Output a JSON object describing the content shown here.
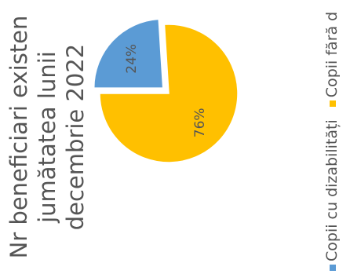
{
  "chart_data": {
    "type": "pie",
    "title_lines": [
      "Nr beneficiari existen",
      "jumătatea lunii",
      "decembrie 2022"
    ],
    "slices": [
      {
        "name": "Copii cu dizabilități",
        "value": 24,
        "label": "24%",
        "color": "#5B9BD5",
        "exploded": true
      },
      {
        "name": "Copii fără d",
        "value": 76,
        "label": "76%",
        "color": "#FFC000",
        "exploded": false
      }
    ],
    "legend_position": "bottom"
  }
}
